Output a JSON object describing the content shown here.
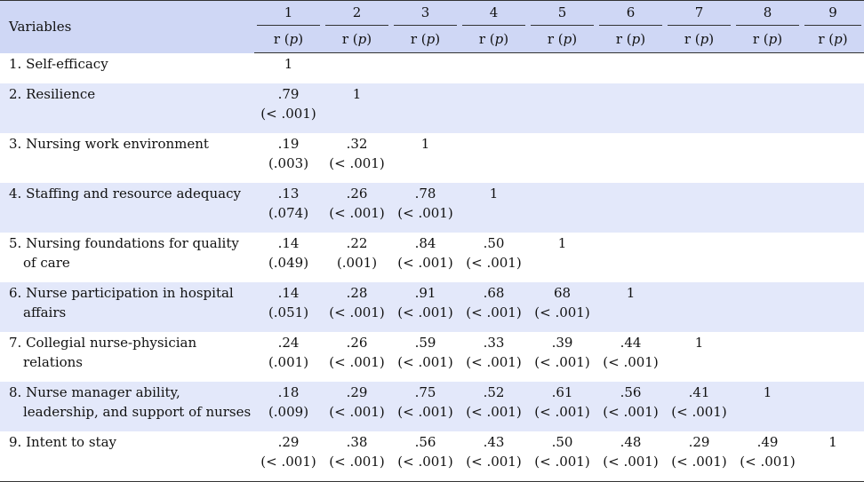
{
  "header": {
    "variables_label": "Variables",
    "columns": [
      "1",
      "2",
      "3",
      "4",
      "5",
      "6",
      "7",
      "8",
      "9"
    ],
    "sub_prefix": "r (",
    "sub_p": "p",
    "sub_suffix": ")"
  },
  "rows": [
    {
      "label": [
        "1. Self-efficacy"
      ],
      "cells": [
        {
          "r": "1",
          "p": ""
        }
      ]
    },
    {
      "label": [
        "2. Resilience"
      ],
      "cells": [
        {
          "r": ".79",
          "p": "(< .001)"
        },
        {
          "r": "1",
          "p": ""
        }
      ]
    },
    {
      "label": [
        "3. Nursing work environment"
      ],
      "cells": [
        {
          "r": ".19",
          "p": "(.003)"
        },
        {
          "r": ".32",
          "p": "(< .001)"
        },
        {
          "r": "1",
          "p": ""
        }
      ]
    },
    {
      "label": [
        "4. Staffing and resource adequacy"
      ],
      "cells": [
        {
          "r": ".13",
          "p": "(.074)"
        },
        {
          "r": ".26",
          "p": "(< .001)"
        },
        {
          "r": ".78",
          "p": "(< .001)"
        },
        {
          "r": "1",
          "p": ""
        }
      ]
    },
    {
      "label": [
        "5. Nursing foundations for quality",
        "of care"
      ],
      "cells": [
        {
          "r": ".14",
          "p": "(.049)"
        },
        {
          "r": ".22",
          "p": "(.001)"
        },
        {
          "r": ".84",
          "p": "(< .001)"
        },
        {
          "r": ".50",
          "p": "(< .001)"
        },
        {
          "r": "1",
          "p": ""
        }
      ]
    },
    {
      "label": [
        "6. Nurse participation in hospital",
        "affairs"
      ],
      "cells": [
        {
          "r": ".14",
          "p": "(.051)"
        },
        {
          "r": ".28",
          "p": "(< .001)"
        },
        {
          "r": ".91",
          "p": "(< .001)"
        },
        {
          "r": ".68",
          "p": "(< .001)"
        },
        {
          "r": "68",
          "p": "(< .001)"
        },
        {
          "r": "1",
          "p": ""
        }
      ]
    },
    {
      "label": [
        "7. Collegial nurse-physician",
        "relations"
      ],
      "cells": [
        {
          "r": ".24",
          "p": "(.001)"
        },
        {
          "r": ".26",
          "p": "(< .001)"
        },
        {
          "r": ".59",
          "p": "(< .001)"
        },
        {
          "r": ".33",
          "p": "(< .001)"
        },
        {
          "r": ".39",
          "p": "(< .001)"
        },
        {
          "r": ".44",
          "p": "(< .001)"
        },
        {
          "r": "1",
          "p": ""
        }
      ]
    },
    {
      "label": [
        "8. Nurse manager ability,",
        "leadership, and support of nurses"
      ],
      "cells": [
        {
          "r": ".18",
          "p": "(.009)"
        },
        {
          "r": ".29",
          "p": "(< .001)"
        },
        {
          "r": ".75",
          "p": "(< .001)"
        },
        {
          "r": ".52",
          "p": "(< .001)"
        },
        {
          "r": ".61",
          "p": "(< .001)"
        },
        {
          "r": ".56",
          "p": "(< .001)"
        },
        {
          "r": ".41",
          "p": "(< .001)"
        },
        {
          "r": "1",
          "p": ""
        }
      ]
    },
    {
      "label": [
        "9. Intent to stay"
      ],
      "cells": [
        {
          "r": ".29",
          "p": "(< .001)"
        },
        {
          "r": ".38",
          "p": "(< .001)"
        },
        {
          "r": ".56",
          "p": "(< .001)"
        },
        {
          "r": ".43",
          "p": "(< .001)"
        },
        {
          "r": ".50",
          "p": "(< .001)"
        },
        {
          "r": ".48",
          "p": "(< .001)"
        },
        {
          "r": ".29",
          "p": "(< .001)"
        },
        {
          "r": ".49",
          "p": "(< .001)"
        },
        {
          "r": "1",
          "p": ""
        }
      ]
    }
  ]
}
